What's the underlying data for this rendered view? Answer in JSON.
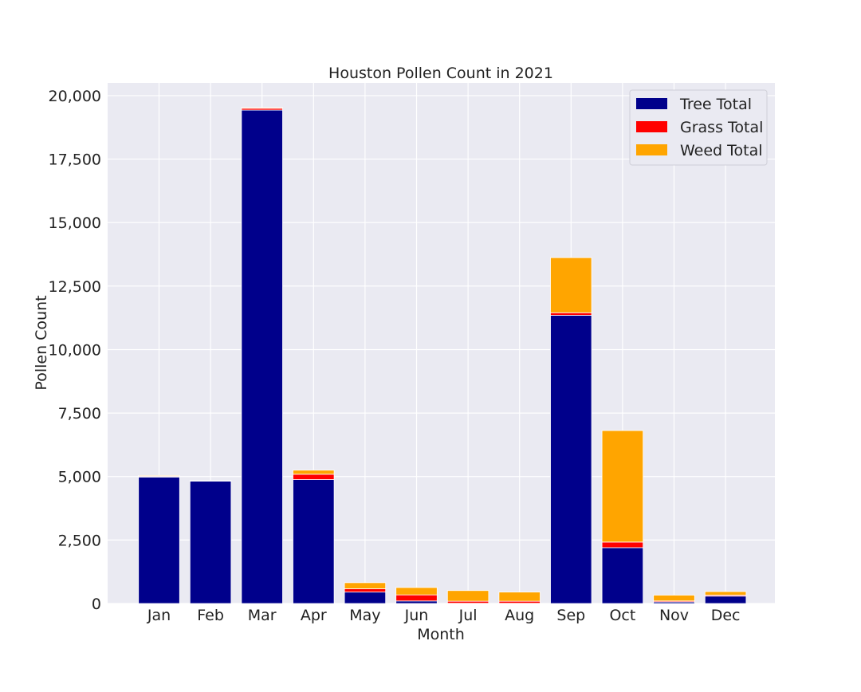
{
  "chart_data": {
    "type": "bar",
    "stacked": true,
    "title": "Houston Pollen Count in 2021",
    "xlabel": "Month",
    "ylabel": "Pollen Count",
    "categories": [
      "Jan",
      "Feb",
      "Mar",
      "Apr",
      "May",
      "Jun",
      "Jul",
      "Aug",
      "Sep",
      "Oct",
      "Nov",
      "Dec"
    ],
    "ylim": [
      0,
      20500
    ],
    "yticks": [
      0,
      2500,
      5000,
      7500,
      10000,
      12500,
      15000,
      17500,
      20000
    ],
    "ytick_labels": [
      "0",
      "2,500",
      "5,000",
      "7,500",
      "10,000",
      "12,500",
      "15,000",
      "17,500",
      "20,000"
    ],
    "grid": true,
    "legend_position": "top-right",
    "series": [
      {
        "name": "Tree Total",
        "color": "#00008b",
        "values": [
          4980,
          4820,
          19430,
          4880,
          450,
          100,
          10,
          10,
          11350,
          2200,
          60,
          290
        ]
      },
      {
        "name": "Grass Total",
        "color": "#ff0000",
        "values": [
          30,
          10,
          70,
          210,
          130,
          240,
          80,
          80,
          100,
          220,
          40,
          40
        ]
      },
      {
        "name": "Weed Total",
        "color": "#ffa500",
        "values": [
          30,
          10,
          30,
          160,
          240,
          290,
          420,
          360,
          2170,
          4390,
          230,
          140
        ]
      }
    ]
  }
}
